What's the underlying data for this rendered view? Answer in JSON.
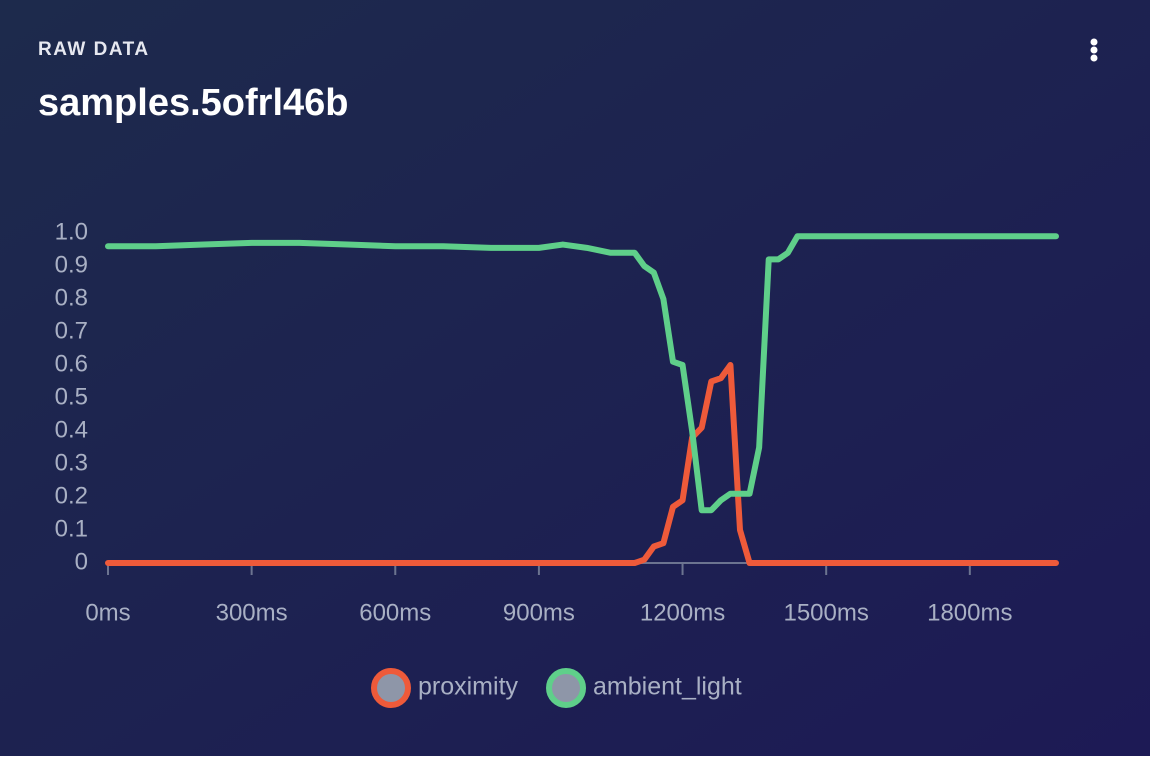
{
  "header": {
    "label": "RAW DATA",
    "title": "samples.5ofrl46b"
  },
  "chart_data": {
    "type": "line",
    "x": [
      0,
      100,
      200,
      300,
      400,
      500,
      600,
      700,
      800,
      900,
      950,
      1000,
      1050,
      1100,
      1120,
      1140,
      1160,
      1180,
      1200,
      1220,
      1240,
      1260,
      1280,
      1300,
      1320,
      1340,
      1360,
      1380,
      1400,
      1420,
      1440,
      1500,
      1600,
      1700,
      1800,
      1900,
      1980
    ],
    "series": [
      {
        "name": "proximity",
        "color": "#ee5a3a",
        "values": [
          0,
          0,
          0,
          0,
          0,
          0,
          0,
          0,
          0,
          0,
          0,
          0,
          0,
          0,
          0.01,
          0.05,
          0.06,
          0.17,
          0.19,
          0.38,
          0.41,
          0.55,
          0.56,
          0.6,
          0.1,
          0,
          0,
          0,
          0,
          0,
          0,
          0,
          0,
          0,
          0,
          0,
          0
        ]
      },
      {
        "name": "ambient_light",
        "color": "#5fcf8a",
        "values": [
          0.96,
          0.96,
          0.965,
          0.97,
          0.97,
          0.965,
          0.96,
          0.96,
          0.955,
          0.955,
          0.965,
          0.955,
          0.94,
          0.94,
          0.9,
          0.88,
          0.8,
          0.61,
          0.6,
          0.4,
          0.16,
          0.16,
          0.19,
          0.21,
          0.21,
          0.21,
          0.35,
          0.92,
          0.92,
          0.94,
          0.99,
          0.99,
          0.99,
          0.99,
          0.99,
          0.99,
          0.99
        ]
      }
    ],
    "xlim": [
      0,
      1980
    ],
    "ylim": [
      0,
      1
    ],
    "xticks": [
      {
        "value": 0,
        "label": "0ms"
      },
      {
        "value": 300,
        "label": "300ms"
      },
      {
        "value": 600,
        "label": "600ms"
      },
      {
        "value": 900,
        "label": "900ms"
      },
      {
        "value": 1200,
        "label": "1200ms"
      },
      {
        "value": 1500,
        "label": "1500ms"
      },
      {
        "value": 1800,
        "label": "1800ms"
      }
    ],
    "yticks": [
      0,
      0.1,
      0.2,
      0.3,
      0.4,
      0.5,
      0.6,
      0.7,
      0.8,
      0.9,
      {
        "value": 1,
        "label": "1.0"
      }
    ]
  }
}
